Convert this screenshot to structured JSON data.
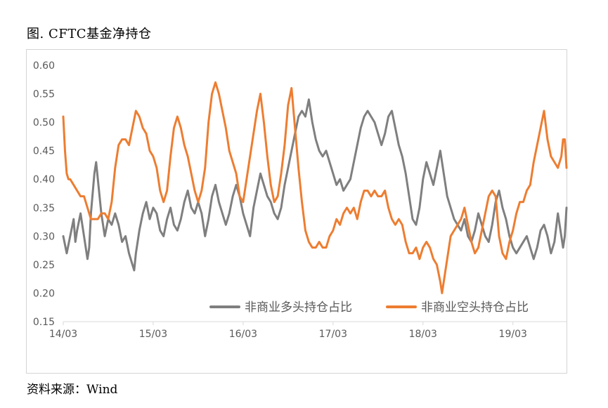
{
  "title": "图. CFTC基金净持仓",
  "source": "资料来源：Wind",
  "colors": {
    "long": "#7f7f7f",
    "short": "#ed7d31",
    "axis": "#d9d9d9",
    "text": "#595959"
  },
  "chart_data": {
    "type": "line",
    "title": "图. CFTC基金净持仓",
    "ylim": [
      0.15,
      0.6
    ],
    "yticks": [
      "0.15",
      "0.20",
      "0.25",
      "0.30",
      "0.35",
      "0.40",
      "0.45",
      "0.50",
      "0.55",
      "0.60"
    ],
    "xtick_labels": [
      "14/03",
      "15/03",
      "16/03",
      "17/03",
      "18/03",
      "19/03"
    ],
    "grid": false,
    "legend_position": "bottom-right",
    "x_unit": "week index from 14/03 (52 per year)",
    "series": [
      {
        "name": "非商业多头持仓占比",
        "anchors": [
          [
            0,
            0.3
          ],
          [
            2,
            0.27
          ],
          [
            4,
            0.3
          ],
          [
            6,
            0.33
          ],
          [
            7,
            0.29
          ],
          [
            8,
            0.31
          ],
          [
            10,
            0.34
          ],
          [
            12,
            0.3
          ],
          [
            14,
            0.26
          ],
          [
            15,
            0.28
          ],
          [
            16,
            0.34
          ],
          [
            18,
            0.41
          ],
          [
            19,
            0.43
          ],
          [
            20,
            0.4
          ],
          [
            22,
            0.34
          ],
          [
            24,
            0.3
          ],
          [
            26,
            0.33
          ],
          [
            28,
            0.32
          ],
          [
            30,
            0.34
          ],
          [
            32,
            0.32
          ],
          [
            34,
            0.29
          ],
          [
            36,
            0.3
          ],
          [
            38,
            0.27
          ],
          [
            40,
            0.25
          ],
          [
            41,
            0.24
          ],
          [
            42,
            0.27
          ],
          [
            44,
            0.31
          ],
          [
            46,
            0.34
          ],
          [
            48,
            0.36
          ],
          [
            50,
            0.33
          ],
          [
            52,
            0.35
          ],
          [
            54,
            0.34
          ],
          [
            56,
            0.31
          ],
          [
            58,
            0.3
          ],
          [
            60,
            0.33
          ],
          [
            62,
            0.35
          ],
          [
            64,
            0.32
          ],
          [
            66,
            0.31
          ],
          [
            68,
            0.33
          ],
          [
            70,
            0.36
          ],
          [
            72,
            0.38
          ],
          [
            74,
            0.35
          ],
          [
            76,
            0.34
          ],
          [
            78,
            0.36
          ],
          [
            80,
            0.34
          ],
          [
            82,
            0.3
          ],
          [
            84,
            0.33
          ],
          [
            86,
            0.37
          ],
          [
            88,
            0.39
          ],
          [
            90,
            0.36
          ],
          [
            92,
            0.34
          ],
          [
            94,
            0.32
          ],
          [
            96,
            0.34
          ],
          [
            98,
            0.37
          ],
          [
            100,
            0.39
          ],
          [
            102,
            0.37
          ],
          [
            104,
            0.34
          ],
          [
            106,
            0.32
          ],
          [
            108,
            0.3
          ],
          [
            110,
            0.35
          ],
          [
            112,
            0.38
          ],
          [
            114,
            0.41
          ],
          [
            116,
            0.39
          ],
          [
            118,
            0.37
          ],
          [
            120,
            0.36
          ],
          [
            122,
            0.34
          ],
          [
            124,
            0.33
          ],
          [
            126,
            0.35
          ],
          [
            128,
            0.39
          ],
          [
            130,
            0.42
          ],
          [
            132,
            0.45
          ],
          [
            134,
            0.48
          ],
          [
            136,
            0.51
          ],
          [
            138,
            0.52
          ],
          [
            140,
            0.51
          ],
          [
            142,
            0.54
          ],
          [
            144,
            0.5
          ],
          [
            146,
            0.47
          ],
          [
            148,
            0.45
          ],
          [
            150,
            0.44
          ],
          [
            152,
            0.45
          ],
          [
            154,
            0.43
          ],
          [
            156,
            0.41
          ],
          [
            158,
            0.39
          ],
          [
            160,
            0.4
          ],
          [
            162,
            0.38
          ],
          [
            164,
            0.39
          ],
          [
            166,
            0.4
          ],
          [
            168,
            0.43
          ],
          [
            170,
            0.46
          ],
          [
            172,
            0.49
          ],
          [
            174,
            0.51
          ],
          [
            176,
            0.52
          ],
          [
            178,
            0.51
          ],
          [
            180,
            0.5
          ],
          [
            182,
            0.48
          ],
          [
            184,
            0.46
          ],
          [
            186,
            0.48
          ],
          [
            188,
            0.51
          ],
          [
            190,
            0.52
          ],
          [
            192,
            0.49
          ],
          [
            194,
            0.46
          ],
          [
            196,
            0.44
          ],
          [
            198,
            0.41
          ],
          [
            200,
            0.37
          ],
          [
            202,
            0.33
          ],
          [
            204,
            0.32
          ],
          [
            206,
            0.35
          ],
          [
            208,
            0.4
          ],
          [
            210,
            0.43
          ],
          [
            212,
            0.41
          ],
          [
            214,
            0.39
          ],
          [
            216,
            0.42
          ],
          [
            218,
            0.45
          ],
          [
            220,
            0.41
          ],
          [
            222,
            0.37
          ],
          [
            224,
            0.35
          ],
          [
            226,
            0.33
          ],
          [
            228,
            0.32
          ],
          [
            230,
            0.31
          ],
          [
            232,
            0.33
          ],
          [
            234,
            0.3
          ],
          [
            236,
            0.29
          ],
          [
            238,
            0.31
          ],
          [
            240,
            0.34
          ],
          [
            242,
            0.32
          ],
          [
            244,
            0.3
          ],
          [
            246,
            0.29
          ],
          [
            248,
            0.32
          ],
          [
            250,
            0.36
          ],
          [
            252,
            0.38
          ],
          [
            254,
            0.35
          ],
          [
            256,
            0.33
          ],
          [
            258,
            0.3
          ],
          [
            260,
            0.28
          ],
          [
            262,
            0.27
          ],
          [
            264,
            0.28
          ],
          [
            266,
            0.29
          ],
          [
            268,
            0.3
          ],
          [
            270,
            0.28
          ],
          [
            272,
            0.26
          ],
          [
            274,
            0.28
          ],
          [
            276,
            0.31
          ],
          [
            278,
            0.32
          ],
          [
            280,
            0.3
          ],
          [
            282,
            0.27
          ],
          [
            284,
            0.29
          ],
          [
            286,
            0.34
          ],
          [
            288,
            0.3
          ],
          [
            289,
            0.28
          ],
          [
            290,
            0.3
          ],
          [
            291,
            0.35
          ]
        ]
      },
      {
        "name": "非商业空头持仓占比",
        "anchors": [
          [
            0,
            0.51
          ],
          [
            1,
            0.45
          ],
          [
            2,
            0.41
          ],
          [
            3,
            0.4
          ],
          [
            4,
            0.4
          ],
          [
            6,
            0.39
          ],
          [
            8,
            0.38
          ],
          [
            10,
            0.37
          ],
          [
            12,
            0.37
          ],
          [
            14,
            0.35
          ],
          [
            16,
            0.33
          ],
          [
            18,
            0.33
          ],
          [
            20,
            0.33
          ],
          [
            22,
            0.34
          ],
          [
            24,
            0.34
          ],
          [
            26,
            0.33
          ],
          [
            28,
            0.36
          ],
          [
            30,
            0.42
          ],
          [
            32,
            0.46
          ],
          [
            34,
            0.47
          ],
          [
            36,
            0.47
          ],
          [
            38,
            0.46
          ],
          [
            40,
            0.49
          ],
          [
            42,
            0.52
          ],
          [
            44,
            0.51
          ],
          [
            46,
            0.49
          ],
          [
            48,
            0.48
          ],
          [
            50,
            0.45
          ],
          [
            52,
            0.44
          ],
          [
            54,
            0.42
          ],
          [
            56,
            0.38
          ],
          [
            58,
            0.36
          ],
          [
            60,
            0.38
          ],
          [
            62,
            0.44
          ],
          [
            64,
            0.49
          ],
          [
            66,
            0.51
          ],
          [
            68,
            0.49
          ],
          [
            70,
            0.46
          ],
          [
            72,
            0.44
          ],
          [
            74,
            0.41
          ],
          [
            76,
            0.38
          ],
          [
            78,
            0.36
          ],
          [
            80,
            0.38
          ],
          [
            82,
            0.42
          ],
          [
            84,
            0.5
          ],
          [
            86,
            0.55
          ],
          [
            88,
            0.57
          ],
          [
            90,
            0.55
          ],
          [
            92,
            0.52
          ],
          [
            94,
            0.49
          ],
          [
            96,
            0.45
          ],
          [
            98,
            0.43
          ],
          [
            100,
            0.41
          ],
          [
            102,
            0.37
          ],
          [
            104,
            0.36
          ],
          [
            106,
            0.4
          ],
          [
            108,
            0.44
          ],
          [
            110,
            0.48
          ],
          [
            112,
            0.52
          ],
          [
            114,
            0.55
          ],
          [
            116,
            0.5
          ],
          [
            118,
            0.44
          ],
          [
            120,
            0.39
          ],
          [
            122,
            0.36
          ],
          [
            124,
            0.37
          ],
          [
            126,
            0.41
          ],
          [
            128,
            0.46
          ],
          [
            130,
            0.53
          ],
          [
            132,
            0.56
          ],
          [
            134,
            0.49
          ],
          [
            136,
            0.42
          ],
          [
            138,
            0.36
          ],
          [
            140,
            0.31
          ],
          [
            142,
            0.29
          ],
          [
            144,
            0.28
          ],
          [
            146,
            0.28
          ],
          [
            148,
            0.29
          ],
          [
            150,
            0.28
          ],
          [
            152,
            0.28
          ],
          [
            154,
            0.3
          ],
          [
            156,
            0.31
          ],
          [
            158,
            0.33
          ],
          [
            160,
            0.32
          ],
          [
            162,
            0.34
          ],
          [
            164,
            0.35
          ],
          [
            166,
            0.34
          ],
          [
            168,
            0.35
          ],
          [
            170,
            0.33
          ],
          [
            172,
            0.36
          ],
          [
            174,
            0.38
          ],
          [
            176,
            0.38
          ],
          [
            178,
            0.37
          ],
          [
            180,
            0.38
          ],
          [
            182,
            0.37
          ],
          [
            184,
            0.37
          ],
          [
            186,
            0.38
          ],
          [
            188,
            0.35
          ],
          [
            190,
            0.33
          ],
          [
            192,
            0.32
          ],
          [
            194,
            0.33
          ],
          [
            196,
            0.32
          ],
          [
            198,
            0.29
          ],
          [
            200,
            0.27
          ],
          [
            202,
            0.27
          ],
          [
            204,
            0.28
          ],
          [
            206,
            0.26
          ],
          [
            208,
            0.28
          ],
          [
            210,
            0.29
          ],
          [
            212,
            0.28
          ],
          [
            214,
            0.26
          ],
          [
            216,
            0.25
          ],
          [
            218,
            0.22
          ],
          [
            219,
            0.2
          ],
          [
            220,
            0.22
          ],
          [
            222,
            0.26
          ],
          [
            224,
            0.3
          ],
          [
            226,
            0.31
          ],
          [
            228,
            0.32
          ],
          [
            230,
            0.33
          ],
          [
            232,
            0.35
          ],
          [
            234,
            0.32
          ],
          [
            236,
            0.29
          ],
          [
            238,
            0.27
          ],
          [
            240,
            0.28
          ],
          [
            242,
            0.31
          ],
          [
            244,
            0.34
          ],
          [
            246,
            0.37
          ],
          [
            248,
            0.38
          ],
          [
            250,
            0.37
          ],
          [
            252,
            0.3
          ],
          [
            254,
            0.27
          ],
          [
            256,
            0.26
          ],
          [
            258,
            0.29
          ],
          [
            260,
            0.31
          ],
          [
            262,
            0.34
          ],
          [
            264,
            0.36
          ],
          [
            266,
            0.36
          ],
          [
            268,
            0.38
          ],
          [
            270,
            0.39
          ],
          [
            272,
            0.43
          ],
          [
            274,
            0.46
          ],
          [
            276,
            0.49
          ],
          [
            278,
            0.52
          ],
          [
            280,
            0.47
          ],
          [
            282,
            0.44
          ],
          [
            284,
            0.43
          ],
          [
            286,
            0.42
          ],
          [
            288,
            0.44
          ],
          [
            289,
            0.47
          ],
          [
            290,
            0.47
          ],
          [
            291,
            0.42
          ]
        ]
      }
    ]
  }
}
